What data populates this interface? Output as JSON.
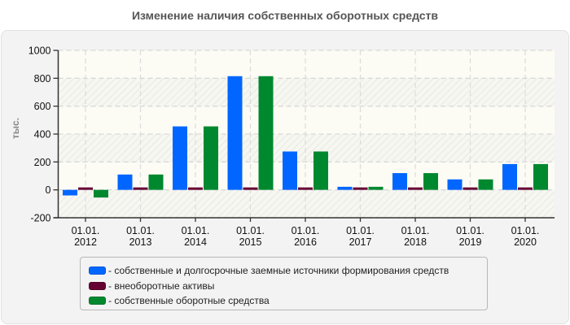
{
  "chart_data": {
    "type": "bar",
    "title": "Изменение наличия собственных оборотных средств",
    "xlabel": "",
    "ylabel": "тыс.",
    "ylim": [
      -200,
      1000
    ],
    "yticks": [
      -200,
      0,
      200,
      400,
      600,
      800,
      1000
    ],
    "grid": true,
    "legend_position": "bottom",
    "categories": [
      "01.01. 2012",
      "01.01. 2013",
      "01.01. 2014",
      "01.01. 2015",
      "01.01. 2016",
      "01.01. 2017",
      "01.01. 2018",
      "01.01. 2019",
      "01.01. 2020"
    ],
    "category_lines": [
      [
        "01.01.",
        "2012"
      ],
      [
        "01.01.",
        "2013"
      ],
      [
        "01.01.",
        "2014"
      ],
      [
        "01.01.",
        "2015"
      ],
      [
        "01.01.",
        "2016"
      ],
      [
        "01.01.",
        "2017"
      ],
      [
        "01.01.",
        "2018"
      ],
      [
        "01.01.",
        "2019"
      ],
      [
        "01.01.",
        "2020"
      ]
    ],
    "series": [
      {
        "name": "собственные и долгосрочные заемные источники формирования средств",
        "color": "#0066ff",
        "values": [
          -40,
          110,
          455,
          815,
          275,
          22,
          120,
          75,
          185
        ]
      },
      {
        "name": "внеоборотные активы",
        "color": "#660033",
        "values": [
          10,
          10,
          10,
          10,
          10,
          10,
          10,
          10,
          10
        ]
      },
      {
        "name": "собственные оборотные средства",
        "color": "#00882f",
        "values": [
          -55,
          110,
          455,
          815,
          275,
          22,
          120,
          75,
          185
        ]
      }
    ]
  },
  "legend": {
    "items": [
      {
        "label": "- собственные и долгосрочные заемные источники формирования средств",
        "color": "#0066ff"
      },
      {
        "label": "- внеоборотные активы",
        "color": "#660033"
      },
      {
        "label": "- собственные оборотные средства",
        "color": "#00882f"
      }
    ]
  }
}
